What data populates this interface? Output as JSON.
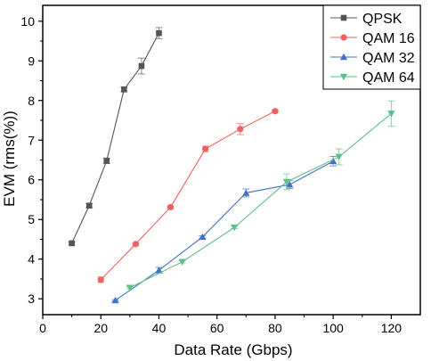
{
  "chart_data": {
    "type": "line",
    "xlabel": "Data Rate (Gbps)",
    "ylabel": "EVM (rms(%))",
    "xlim": [
      0,
      130
    ],
    "ylim": [
      2.6,
      10.4
    ],
    "xticks": [
      0,
      20,
      40,
      60,
      80,
      100,
      120
    ],
    "yticks": [
      3,
      4,
      5,
      6,
      7,
      8,
      9,
      10
    ],
    "grid": false,
    "legend_position": "top-right",
    "series": [
      {
        "name": "QPSK",
        "color": "#555555",
        "marker": "square",
        "x": [
          10,
          16,
          22,
          28,
          34,
          40
        ],
        "y": [
          4.4,
          5.35,
          6.48,
          8.28,
          8.87,
          9.7
        ],
        "err": [
          0.03,
          0.05,
          0.07,
          0.06,
          0.2,
          0.14
        ]
      },
      {
        "name": "QAM 16",
        "color": "#f06262",
        "marker": "circle",
        "x": [
          20,
          32,
          44,
          56,
          68,
          80
        ],
        "y": [
          3.48,
          4.38,
          5.31,
          6.78,
          7.28,
          7.73
        ],
        "err": [
          0.07,
          0.03,
          0.03,
          0.07,
          0.14,
          0.03
        ]
      },
      {
        "name": "QAM 32",
        "color": "#3f72c8",
        "marker": "triangle-up",
        "x": [
          25,
          40,
          55,
          70,
          85,
          100
        ],
        "y": [
          2.96,
          3.72,
          4.56,
          5.67,
          5.88,
          6.47
        ],
        "err": [
          0.02,
          0.07,
          0.03,
          0.1,
          0.1,
          0.12
        ]
      },
      {
        "name": "QAM 64",
        "color": "#5fbf8a",
        "marker": "triangle-down",
        "x": [
          30,
          48,
          66,
          84,
          102,
          120
        ],
        "y": [
          3.28,
          3.93,
          4.8,
          5.95,
          6.58,
          7.67
        ],
        "err": [
          0.03,
          0.03,
          0.03,
          0.2,
          0.2,
          0.32
        ]
      }
    ]
  }
}
